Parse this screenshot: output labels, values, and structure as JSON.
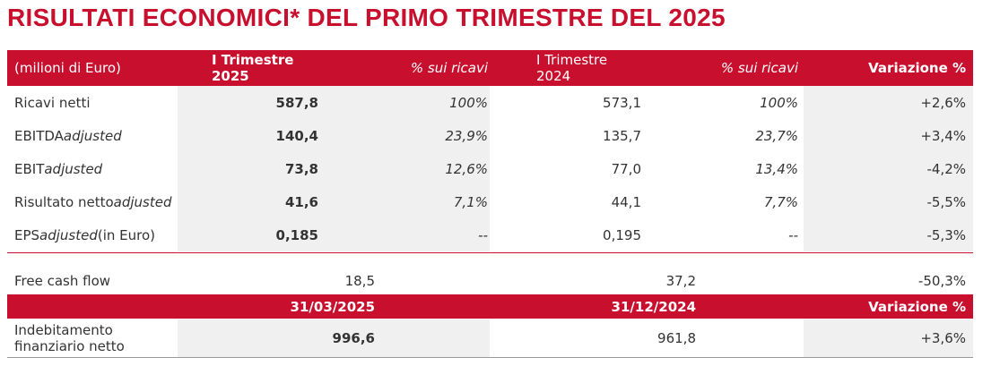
{
  "title": "RISULTATI ECONOMICI* DEL PRIMO TRIMESTRE DEL 2025",
  "colors": {
    "accent": "#c8102e",
    "shade": "#f0f0f0"
  },
  "table": {
    "header": [
      "(milioni di Euro)",
      "I Trimestre 2025",
      "% sui ricavi",
      "I Trimestre 2024",
      "% sui ricavi",
      "Variazione %"
    ],
    "rows": [
      {
        "label": "Ricavi netti",
        "label_italic": "",
        "label_suffix": "",
        "v2025": "587,8",
        "p2025": "100%",
        "v2024": "573,1",
        "p2024": "100%",
        "var": "+2,6%"
      },
      {
        "label": "EBITDA ",
        "label_italic": "adjusted",
        "label_suffix": "",
        "v2025": "140,4",
        "p2025": "23,9%",
        "v2024": "135,7",
        "p2024": "23,7%",
        "var": "+3,4%"
      },
      {
        "label": "EBIT ",
        "label_italic": "adjusted",
        "label_suffix": "",
        "v2025": "73,8",
        "p2025": "12,6%",
        "v2024": "77,0",
        "p2024": "13,4%",
        "var": "-4,2%"
      },
      {
        "label": "Risultato netto ",
        "label_italic": "adjusted",
        "label_suffix": "",
        "v2025": "41,6",
        "p2025": "7,1%",
        "v2024": "44,1",
        "p2024": "7,7%",
        "var": "-5,5%"
      },
      {
        "label": "EPS ",
        "label_italic": "adjusted",
        "label_suffix": " (in Euro)",
        "v2025": "0,185",
        "p2025": "--",
        "v2024": "0,195",
        "p2024": "--",
        "var": "-5,3%"
      }
    ]
  },
  "fcf": {
    "label": "Free cash flow",
    "v2025": "18,5",
    "v2024": "37,2",
    "var": "-50,3%"
  },
  "debt": {
    "header": [
      "31/03/2025",
      "31/12/2024",
      "Variazione %"
    ],
    "label_line1": "Indebitamento",
    "label_line2": "finanziario netto",
    "v2025": "996,6",
    "v2024": "961,8",
    "var": "+3,6%"
  }
}
